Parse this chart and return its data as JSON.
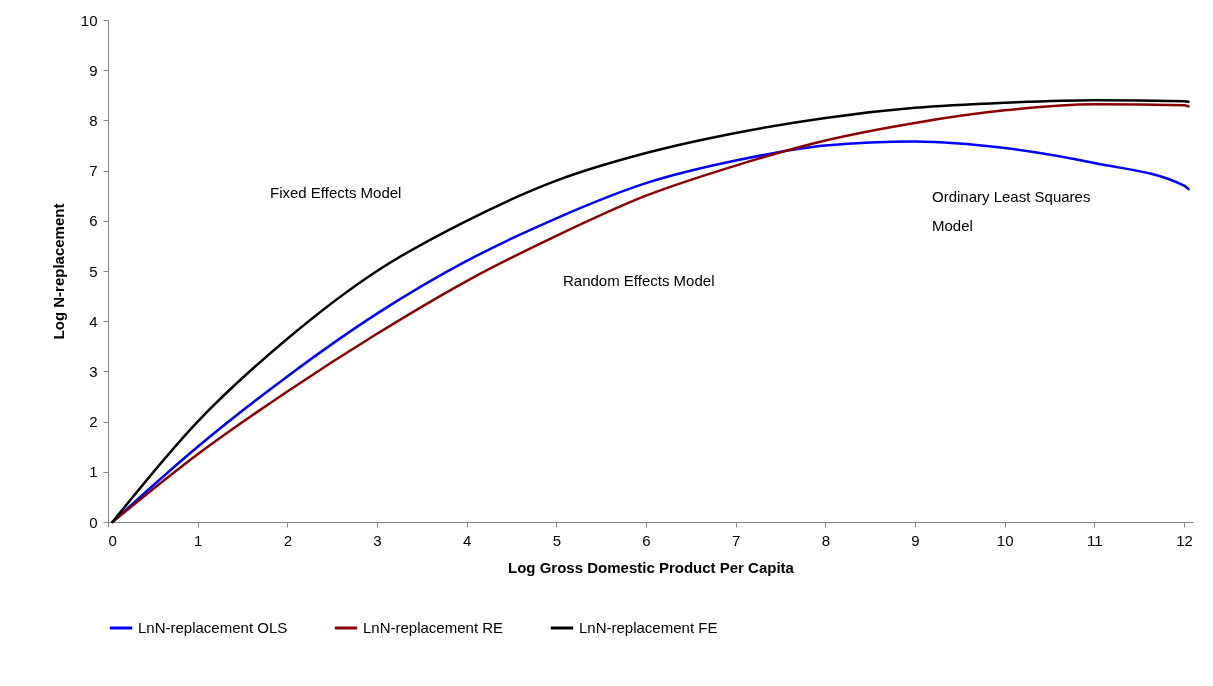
{
  "chart_data": {
    "type": "line",
    "xlabel": "Log Gross Domestic Product Per  Capita",
    "ylabel": "Log N-replacement",
    "x": [
      0.05,
      1,
      2,
      3,
      4,
      5,
      6,
      7,
      8,
      9,
      10,
      11,
      12,
      12.05
    ],
    "series": [
      {
        "name": "LnN-replacement OLS",
        "color": "#0000ff",
        "values": [
          0,
          1.5,
          2.9,
          4.15,
          5.2,
          6.05,
          6.75,
          7.2,
          7.5,
          7.58,
          7.45,
          7.15,
          6.7,
          6.63
        ]
      },
      {
        "name": "LnN-replacement RE",
        "color": "#8b0000",
        "values": [
          0,
          1.35,
          2.6,
          3.75,
          4.8,
          5.7,
          6.5,
          7.1,
          7.6,
          7.95,
          8.2,
          8.32,
          8.3,
          8.28
        ]
      },
      {
        "name": "LnN-replacement FE",
        "color": "#000000",
        "values": [
          0,
          2.0,
          3.65,
          5.0,
          6.0,
          6.8,
          7.35,
          7.75,
          8.05,
          8.25,
          8.35,
          8.4,
          8.38,
          8.37
        ]
      }
    ],
    "annotations": [
      "Fixed Effects Model",
      "Random Effects Model",
      "Ordinary Least Squares\nModel"
    ],
    "xlim": [
      0,
      12.1
    ],
    "xticks": [
      0,
      1,
      2,
      3,
      4,
      5,
      6,
      7,
      8,
      9,
      10,
      11,
      12
    ],
    "ylim": [
      0,
      10
    ],
    "yticks": [
      0,
      1,
      2,
      3,
      4,
      5,
      6,
      7,
      8,
      9,
      10
    ],
    "grid": false,
    "legend": "bottom",
    "line_style": "solid",
    "marker": "none"
  }
}
